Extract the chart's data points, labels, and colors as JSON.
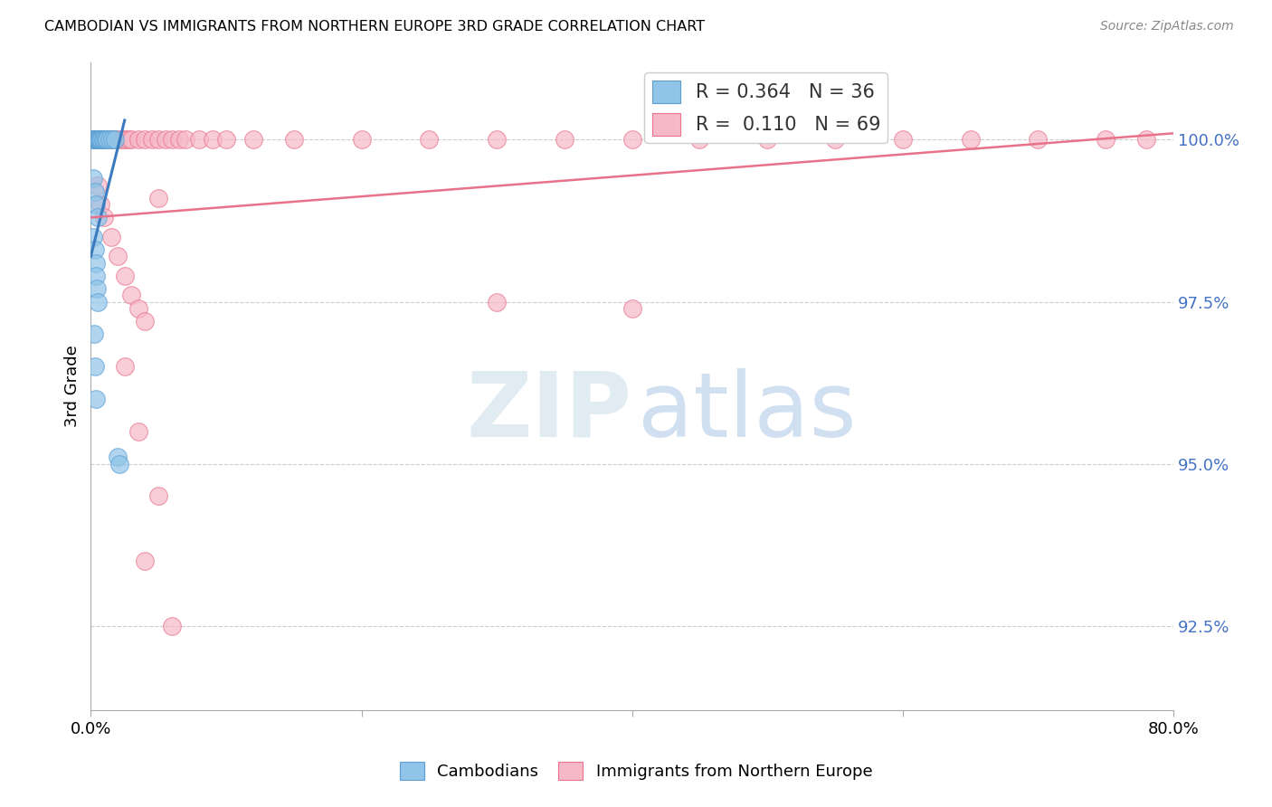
{
  "title": "CAMBODIAN VS IMMIGRANTS FROM NORTHERN EUROPE 3RD GRADE CORRELATION CHART",
  "source": "Source: ZipAtlas.com",
  "ylabel": "3rd Grade",
  "yticks": [
    92.5,
    95.0,
    97.5,
    100.0
  ],
  "ytick_labels": [
    "92.5%",
    "95.0%",
    "97.5%",
    "100.0%"
  ],
  "xlim": [
    0.0,
    80.0
  ],
  "ylim": [
    91.2,
    101.2
  ],
  "legend_blue_R": "0.364",
  "legend_blue_N": "36",
  "legend_pink_R": "0.110",
  "legend_pink_N": "69",
  "blue_scatter_color": "#90c4e8",
  "blue_edge_color": "#5a9fd4",
  "pink_scatter_color": "#f7b8c8",
  "pink_edge_color": "#e8728a",
  "blue_line_color": "#3a7abf",
  "pink_line_color": "#e8728a",
  "legend_label_blue": "Cambodians",
  "legend_label_pink": "Immigrants from Northern Europe",
  "cam_x": [
    0.15,
    0.2,
    0.25,
    0.3,
    0.35,
    0.4,
    0.45,
    0.5,
    0.55,
    0.6,
    0.65,
    0.7,
    0.8,
    0.9,
    1.0,
    1.1,
    1.2,
    1.4,
    1.6,
    1.8,
    0.2,
    0.3,
    0.4,
    0.5,
    0.2,
    0.3,
    0.35,
    0.4,
    0.45,
    0.5,
    0.25,
    0.3,
    0.35,
    2.0,
    2.1
  ],
  "cam_y": [
    100.0,
    100.0,
    100.0,
    100.0,
    100.0,
    100.0,
    100.0,
    100.0,
    100.0,
    100.0,
    100.0,
    100.0,
    100.0,
    100.0,
    100.0,
    100.0,
    100.0,
    100.0,
    100.0,
    100.0,
    99.4,
    99.2,
    99.0,
    98.8,
    98.5,
    98.3,
    98.1,
    97.9,
    97.7,
    97.5,
    97.0,
    96.5,
    96.0,
    95.1,
    95.0
  ],
  "pink_x_top": [
    0.3,
    0.5,
    0.8,
    1.0,
    1.2,
    1.5,
    1.8,
    2.0,
    2.3,
    2.5,
    2.8,
    3.0,
    3.5,
    4.0,
    4.5,
    5.0,
    5.5,
    6.0,
    6.5,
    7.0,
    8.0,
    9.0,
    10.0,
    12.0,
    15.0,
    20.0,
    25.0,
    30.0,
    35.0,
    40.0,
    45.0,
    50.0,
    55.0,
    60.0,
    65.0,
    70.0,
    75.0,
    78.0
  ],
  "pink_y_top": [
    100.0,
    100.0,
    100.0,
    100.0,
    100.0,
    100.0,
    100.0,
    100.0,
    100.0,
    100.0,
    100.0,
    100.0,
    100.0,
    100.0,
    100.0,
    100.0,
    100.0,
    100.0,
    100.0,
    100.0,
    100.0,
    100.0,
    100.0,
    100.0,
    100.0,
    100.0,
    100.0,
    100.0,
    100.0,
    100.0,
    100.0,
    100.0,
    100.0,
    100.0,
    100.0,
    100.0,
    100.0,
    100.0
  ],
  "pink_x_mid": [
    0.5,
    0.7,
    1.0,
    1.5,
    2.0,
    2.5,
    3.0,
    3.5,
    4.0,
    5.0,
    30.0,
    40.0
  ],
  "pink_y_mid": [
    99.3,
    99.0,
    98.8,
    98.5,
    98.2,
    97.9,
    97.6,
    97.4,
    97.2,
    99.1,
    97.5,
    97.4
  ],
  "pink_x_low": [
    2.5,
    3.5,
    5.0,
    4.0,
    6.0
  ],
  "pink_y_low": [
    96.5,
    95.5,
    94.5,
    93.5,
    92.5
  ],
  "blue_line_x": [
    0.0,
    2.5
  ],
  "blue_line_y": [
    98.2,
    100.3
  ],
  "pink_line_x": [
    0.0,
    80.0
  ],
  "pink_line_y": [
    98.8,
    100.1
  ]
}
